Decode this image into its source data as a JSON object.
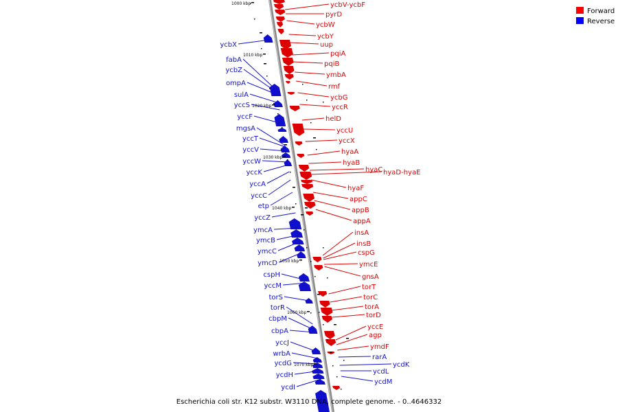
{
  "legend": {
    "forward_label": "Forward",
    "reverse_label": "Reverse",
    "forward_color": "#ff0000",
    "reverse_color": "#0000ff"
  },
  "caption": "Escherichia coli str. K12 substr. W3110 DNA, complete genome. - 0..4646332",
  "ticks": [
    {
      "label": "1000 kbp"
    },
    {
      "label": "1010 kbp"
    },
    {
      "label": "1020 kbp"
    },
    {
      "label": "1030 kbp"
    },
    {
      "label": "1040 kbp"
    },
    {
      "label": "1050 kbp"
    },
    {
      "label": "1060 kbp"
    },
    {
      "label": "1070 kbp"
    }
  ],
  "forward_genes": [
    "ycbV-ycbF",
    "pyrD",
    "ycbW",
    "ycbY",
    "uup",
    "pqiA",
    "pqiB",
    "ymbA",
    "rmf",
    "ycbG",
    "yccR",
    "helD",
    "yccU",
    "yccX",
    "hyaA",
    "hyaB",
    "hyaC",
    "hyaD-hyaE",
    "hyaF",
    "appC",
    "appB",
    "appA",
    "insA",
    "insB",
    "cspG",
    "ymcE",
    "gnsA",
    "torT",
    "torC",
    "torA",
    "torD",
    "yccE",
    "agp",
    "ymdF"
  ],
  "reverse_genes": [
    "ycbX",
    "fabA",
    "ycbZ",
    "ompA",
    "sulA",
    "yccS",
    "yccF",
    "mgsA",
    "yccT",
    "yccV",
    "yccW",
    "yccK",
    "yccA",
    "yccC",
    "etp",
    "yccZ",
    "ymcA",
    "ymcB",
    "ymcC",
    "ymcD",
    "cspH",
    "yccM",
    "torS",
    "torR",
    "cbpM",
    "cbpA",
    "yccJ",
    "wrbA",
    "ycdG",
    "ycdH",
    "ycdI",
    "rarA",
    "ycdK",
    "ycdL",
    "ycdM"
  ]
}
